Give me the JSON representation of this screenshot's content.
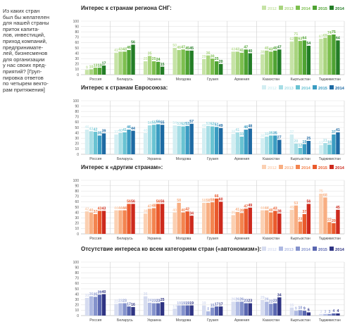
{
  "side_text": "Из каких стран\nбыл бы желателен\nдля нашей страны\nприток капита-\nлов, инвестиций,\nприход компаний,\nпредпринимате-\nлей, бизнесменов\nдля организации\nу нас своих пред-\nприятий? [Груп-\nпировка ответов\nпо четырем векто-\nрам притяжения]",
  "chart_data": [
    {
      "type": "bar",
      "title": "Интерес к странам региона СНГ:",
      "categories": [
        "Россия",
        "Беларусь",
        "Украина",
        "Молдова",
        "Грузия",
        "Армения",
        "Казахстан",
        "Кыргызстан",
        "Таджикистан"
      ],
      "ylim": [
        0,
        100
      ],
      "yticks": [
        0,
        10,
        20,
        30,
        40,
        50,
        60,
        70,
        80,
        90,
        100
      ],
      "grid": true,
      "legend_position": "top-right",
      "colors": [
        "#c6e3a6",
        "#a8d47e",
        "#7dbf4f",
        "#4ea332",
        "#237d26"
      ],
      "series": [
        {
          "name": "2012",
          "values": [
            9,
            41,
            25,
            50,
            29,
            43,
            38,
            62,
            67
          ]
        },
        {
          "name": "2013",
          "values": [
            10,
            43,
            35,
            46,
            36,
            43,
            45,
            71,
            69
          ]
        },
        {
          "name": "2014",
          "values": [
            13,
            43,
            25,
            47,
            30,
            41,
            43,
            63,
            74
          ]
        },
        {
          "name": "2015",
          "values": [
            13,
            46,
            24,
            45,
            25,
            47,
            45,
            64,
            75
          ]
        },
        {
          "name": "2014",
          "values": [
            17,
            56,
            15,
            45,
            20,
            40,
            47,
            54,
            64
          ]
        }
      ]
    },
    {
      "type": "bar",
      "title": "Интерес к странам Евросоюза:",
      "categories": [
        "Россия",
        "Беларусь",
        "Украина",
        "Молдова",
        "Грузия",
        "Армения",
        "Казахстан",
        "Кыргызстан",
        "Таджикистан"
      ],
      "ylim": [
        0,
        100
      ],
      "yticks": [
        0,
        10,
        20,
        30,
        40,
        50,
        60,
        70,
        80,
        90,
        100
      ],
      "grid": true,
      "legend_position": "top-right",
      "colors": [
        "#d2eef2",
        "#a6dde5",
        "#69c3d2",
        "#3a9cc2",
        "#1e6aa3"
      ],
      "series": [
        {
          "name": "2012",
          "values": [
            46,
            37,
            40,
            54,
            49,
            38,
            30,
            37,
            17
          ]
        },
        {
          "name": "2013",
          "values": [
            43,
            40,
            54,
            53,
            53,
            41,
            33,
            20,
            21
          ]
        },
        {
          "name": "2014",
          "values": [
            42,
            41,
            55,
            52,
            52,
            33,
            35,
            12,
            18
          ]
        },
        {
          "name": "2015",
          "values": [
            35,
            46,
            56,
            53,
            51,
            46,
            35,
            19,
            37
          ]
        },
        {
          "name": "2014",
          "values": [
            39,
            44,
            55,
            57,
            49,
            48,
            27,
            25,
            41
          ]
        }
      ]
    },
    {
      "type": "bar",
      "title": "Интерес к «другим странам»:",
      "categories": [
        "Россия",
        "Беларусь",
        "Украина",
        "Молдова",
        "Грузия",
        "Армения",
        "Казахстан",
        "Кыргызстан",
        "Таджикистан"
      ],
      "ylim": [
        0,
        100
      ],
      "yticks": [
        0,
        10,
        20,
        30,
        40,
        50,
        60,
        70,
        80,
        90,
        100
      ],
      "grid": true,
      "legend_position": "top-right",
      "colors": [
        "#fbd0b2",
        "#f8ae82",
        "#f3844f",
        "#ea5a2c",
        "#cd2a1d"
      ],
      "series": [
        {
          "name": "2012",
          "values": [
            42,
            44,
            38,
            40,
            58,
            35,
            44,
            45,
            75
          ]
        },
        {
          "name": "2013",
          "values": [
            40,
            44,
            47,
            58,
            58,
            41,
            44,
            53,
            68
          ]
        },
        {
          "name": "2014",
          "values": [
            37,
            44,
            48,
            40,
            59,
            39,
            40,
            23,
            22
          ]
        },
        {
          "name": "2015",
          "values": [
            43,
            56,
            56,
            42,
            66,
            47,
            43,
            37,
            20
          ]
        },
        {
          "name": "2014",
          "values": [
            43,
            56,
            56,
            34,
            60,
            49,
            38,
            56,
            45
          ]
        }
      ]
    },
    {
      "type": "bar",
      "title": "Отсутствие интереса ко всем категориям стран («автономизм»):",
      "categories": [
        "Россия",
        "Беларусь",
        "Украина",
        "Молдова",
        "Грузия",
        "Армения",
        "Казахстан",
        "Кыргызстан",
        "Таджикистан"
      ],
      "ylim": [
        0,
        100
      ],
      "yticks": [
        0,
        10,
        20,
        30,
        40,
        50,
        60,
        70,
        80,
        90,
        100
      ],
      "grid": true,
      "legend_position": "top-right",
      "colors": [
        "#d6dcf0",
        "#aeb9e2",
        "#8492cc",
        "#5966b0",
        "#2f3483"
      ],
      "series": [
        {
          "name": "2012",
          "values": [
            33,
            22,
            36,
            13,
            19,
            26,
            29,
            15,
            3
          ]
        },
        {
          "name": "2013",
          "values": [
            36,
            23,
            24,
            19,
            8,
            26,
            26,
            9,
            3
          ]
        },
        {
          "name": "2014",
          "values": [
            35,
            23,
            23,
            19,
            15,
            26,
            22,
            10,
            3
          ]
        },
        {
          "name": "2015",
          "values": [
            39,
            17,
            23,
            19,
            17,
            23,
            23,
            9,
            4
          ]
        },
        {
          "name": "2014",
          "values": [
            40,
            16,
            25,
            19,
            17,
            23,
            34,
            6,
            4
          ]
        }
      ]
    }
  ]
}
